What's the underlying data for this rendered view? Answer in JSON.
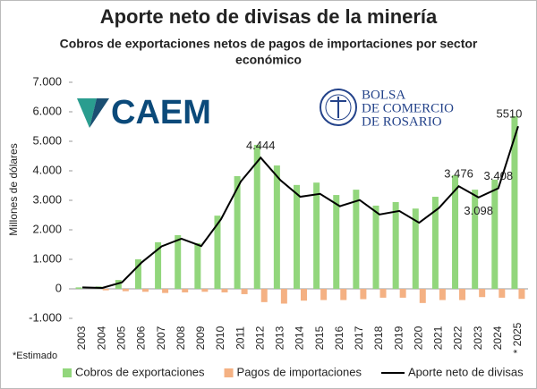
{
  "chart_data": {
    "type": "bar",
    "title": "Aporte neto de divisas de la minería",
    "subtitle": [
      "Cobros de exportaciones netos de pagos de importaciones por sector",
      "económico"
    ],
    "y_label": "Millones de dólares",
    "categories": [
      "2003",
      "2004",
      "2005",
      "2006",
      "2007",
      "2008",
      "2009",
      "2010",
      "2011",
      "2012",
      "2013",
      "2014",
      "2015",
      "2016",
      "2017",
      "2018",
      "2019",
      "2020",
      "2021",
      "2022",
      "2023",
      "2024",
      "* 2025"
    ],
    "series": [
      {
        "name": "Cobros de exportaciones",
        "kind": "bar",
        "color": "#92d67c",
        "values": [
          50,
          80,
          300,
          1000,
          1580,
          1820,
          1550,
          2480,
          3820,
          4880,
          4180,
          3520,
          3600,
          3180,
          3360,
          2820,
          2940,
          2720,
          3120,
          3850,
          3360,
          3700,
          5850
        ]
      },
      {
        "name": "Pagos de importaciones",
        "kind": "bar",
        "color": "#f4b183",
        "values": [
          0,
          -50,
          -80,
          -100,
          -140,
          -120,
          -100,
          -120,
          -180,
          -450,
          -500,
          -400,
          -380,
          -380,
          -350,
          -300,
          -300,
          -480,
          -380,
          -380,
          -280,
          -300,
          -340
        ]
      },
      {
        "name": "Aporte neto de divisas",
        "kind": "line",
        "color": "#000000",
        "values": [
          50,
          30,
          220,
          900,
          1440,
          1700,
          1450,
          2360,
          3640,
          4444,
          3680,
          3120,
          3220,
          2800,
          3010,
          2520,
          2640,
          2240,
          2740,
          3476,
          3098,
          3408,
          5510
        ],
        "value_labels": [
          null,
          null,
          null,
          null,
          null,
          null,
          null,
          null,
          null,
          "4.444",
          null,
          null,
          null,
          null,
          null,
          null,
          null,
          null,
          null,
          "3.476",
          "3.098",
          "3.408",
          "5510"
        ]
      }
    ],
    "ylim": [
      -1000,
      7000
    ],
    "yticks": [
      {
        "value": -1000,
        "label": "-1.000"
      },
      0,
      {
        "value": 1000,
        "label": "1.000"
      },
      {
        "value": 2000,
        "label": "2.000"
      },
      {
        "value": 3000,
        "label": "3.000"
      },
      {
        "value": 4000,
        "label": "4.000"
      },
      {
        "value": 5000,
        "label": "5.000"
      },
      {
        "value": 6000,
        "label": "6.000"
      },
      {
        "value": 7000,
        "label": "7.000"
      }
    ],
    "grid": false,
    "legend": "bottom"
  },
  "logos": {
    "caem": "CAEM",
    "bolsa": [
      "BOLSA",
      "DE COMERCIO",
      "DE ROSARIO"
    ]
  },
  "note": "*Estimado"
}
